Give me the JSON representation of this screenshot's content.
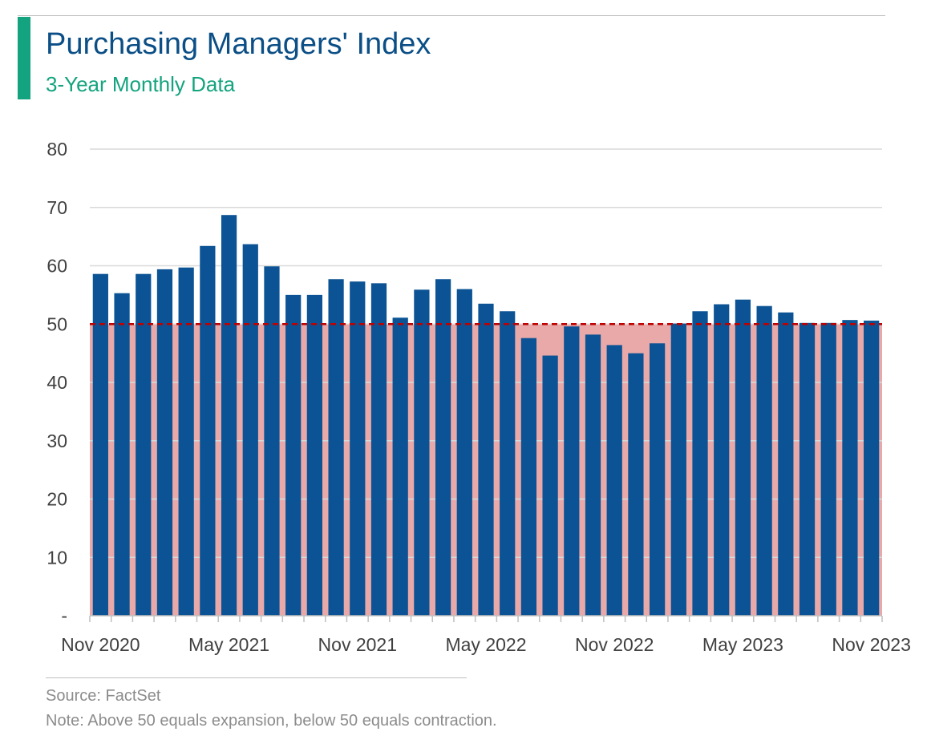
{
  "header": {
    "title": "Purchasing Managers' Index",
    "subtitle": "3-Year Monthly Data"
  },
  "footer": {
    "source": "Source: FactSet",
    "note": "Note: Above 50 equals expansion, below 50 equals contraction."
  },
  "colors": {
    "accent": "#14a37f",
    "title": "#0b4f86",
    "bar": "#0b5394",
    "contraction_band": "#e9a9a9",
    "threshold_line": "#c00000",
    "grid": "#d9d9d9"
  },
  "chart_data": {
    "type": "bar",
    "title": "Purchasing Managers' Index",
    "subtitle": "3-Year Monthly Data",
    "xlabel": "",
    "ylabel": "",
    "ylim": [
      0,
      80
    ],
    "yticks": [
      0,
      10,
      20,
      30,
      40,
      50,
      60,
      70,
      80
    ],
    "ytick_labels": [
      "-",
      "10",
      "20",
      "30",
      "40",
      "50",
      "60",
      "70",
      "80"
    ],
    "xtick_labels": [
      "Nov 2020",
      "May 2021",
      "Nov 2021",
      "May 2022",
      "Nov 2022",
      "May 2023",
      "Nov 2023"
    ],
    "xtick_every": 6,
    "grid": true,
    "threshold": 50,
    "shaded_region": {
      "from": 0,
      "to": 50
    },
    "categories": [
      "Nov 2020",
      "Dec 2020",
      "Jan 2021",
      "Feb 2021",
      "Mar 2021",
      "Apr 2021",
      "May 2021",
      "Jun 2021",
      "Jul 2021",
      "Aug 2021",
      "Sep 2021",
      "Oct 2021",
      "Nov 2021",
      "Dec 2021",
      "Jan 2022",
      "Feb 2022",
      "Mar 2022",
      "Apr 2022",
      "May 2022",
      "Jun 2022",
      "Jul 2022",
      "Aug 2022",
      "Sep 2022",
      "Oct 2022",
      "Nov 2022",
      "Dec 2022",
      "Jan 2023",
      "Feb 2023",
      "Mar 2023",
      "Apr 2023",
      "May 2023",
      "Jun 2023",
      "Jul 2023",
      "Aug 2023",
      "Sep 2023",
      "Oct 2023",
      "Nov 2023"
    ],
    "values": [
      58.6,
      55.3,
      58.6,
      59.4,
      59.7,
      63.4,
      68.7,
      63.7,
      59.9,
      55.0,
      55.0,
      57.7,
      57.3,
      57.0,
      51.1,
      55.9,
      57.7,
      56.0,
      53.5,
      52.2,
      47.6,
      44.6,
      49.6,
      48.2,
      46.4,
      45.0,
      46.7,
      50.1,
      52.2,
      53.4,
      54.2,
      53.1,
      52.0,
      50.2,
      50.2,
      50.7,
      50.6
    ]
  }
}
